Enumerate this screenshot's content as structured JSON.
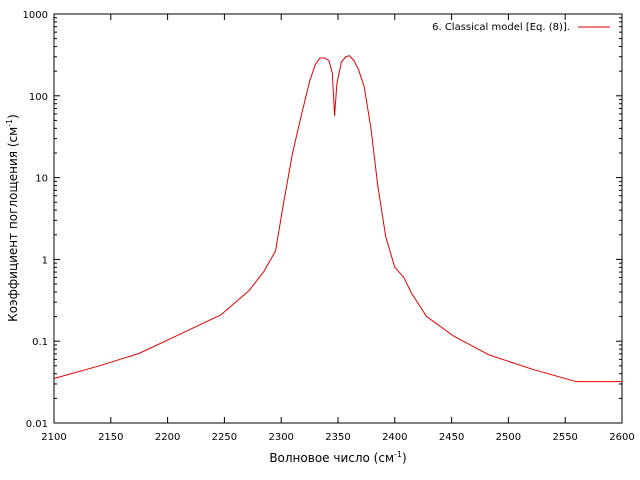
{
  "chart_data": {
    "type": "line",
    "xlabel": "Волновое число (см",
    "xlabel_sup": "-1",
    "xlabel_end": ")",
    "ylabel": "Коэффициент поглощения (см",
    "ylabel_sup": "-1",
    "ylabel_end": ")",
    "xlim": [
      2100,
      2600
    ],
    "ylim": [
      0.01,
      1000
    ],
    "yscale": "log",
    "x_ticks": [
      2100,
      2150,
      2200,
      2250,
      2300,
      2350,
      2400,
      2450,
      2500,
      2550,
      2600
    ],
    "x_tick_labels": [
      "2100",
      "2150",
      "2200",
      "2250",
      "2300",
      "2350",
      "2400",
      "2450",
      "2500",
      "2550",
      "2600"
    ],
    "y_ticks": [
      0.01,
      0.1,
      1,
      10,
      100,
      1000
    ],
    "y_tick_labels": [
      "0.01",
      "0.1",
      "1",
      "10",
      "100",
      "1000"
    ],
    "grid": false,
    "legend_position": "top-right",
    "series": [
      {
        "name": "6. Classical model [Eq. (8)].",
        "color": "#e00000",
        "x": [
          2100,
          2140,
          2175,
          2210,
          2247,
          2272,
          2285,
          2295,
          2302,
          2310,
          2318,
          2325,
          2330,
          2334,
          2338,
          2342,
          2345,
          2347,
          2349,
          2353,
          2357,
          2360,
          2364,
          2368,
          2373,
          2379,
          2385,
          2392,
          2400,
          2408,
          2415,
          2428,
          2452,
          2483,
          2522,
          2560,
          2600
        ],
        "y": [
          0.035,
          0.05,
          0.071,
          0.12,
          0.21,
          0.42,
          0.72,
          1.27,
          4.8,
          20,
          60,
          150,
          240,
          290,
          290,
          270,
          190,
          57,
          140,
          260,
          300,
          310,
          270,
          210,
          130,
          40,
          8,
          1.9,
          0.8,
          0.6,
          0.38,
          0.2,
          0.115,
          0.068,
          0.045,
          0.032,
          0.032
        ]
      }
    ]
  }
}
